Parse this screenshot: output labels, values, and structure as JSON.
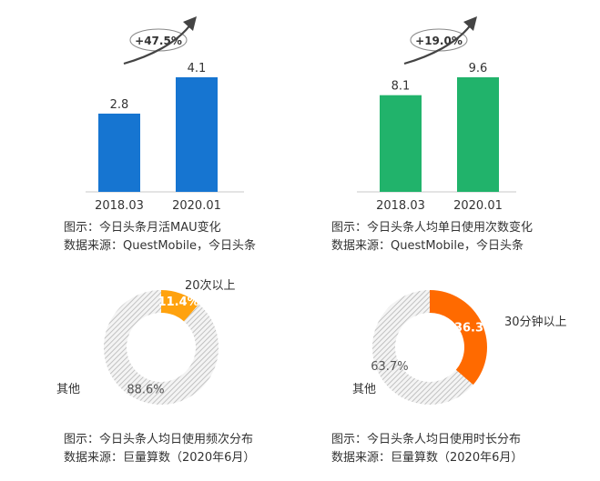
{
  "colors": {
    "blue": "#1675d1",
    "green": "#21b36b",
    "orange_pie1": "#ffa20e",
    "orange_pie2": "#ff6a00",
    "hatch": "#b5b5b5",
    "axis": "#c8c8c8",
    "text": "#333333"
  },
  "chart_data": [
    {
      "type": "bar",
      "categories": [
        "2018.03",
        "2020.01"
      ],
      "values": [
        2.8,
        4.1
      ],
      "value_labels": [
        "2.8",
        "4.1"
      ],
      "growth_badge": "+47.5%",
      "caption": "图示：今日头条月活MAU变化",
      "source": "数据来源：QuestMobile，今日头条",
      "color": "#1675d1",
      "ylim": [
        0,
        4.1
      ]
    },
    {
      "type": "bar",
      "categories": [
        "2018.03",
        "2020.01"
      ],
      "values": [
        8.1,
        9.6
      ],
      "value_labels": [
        "8.1",
        "9.6"
      ],
      "growth_badge": "+19.0%",
      "caption": "图示：今日头条人均单日使用次数变化",
      "source": "数据来源：QuestMobile，今日头条",
      "color": "#21b36b",
      "ylim": [
        0,
        9.6
      ]
    },
    {
      "type": "pie",
      "donut": true,
      "slices": [
        {
          "label": "20次以上",
          "value": 11.4,
          "pct_label": "11.4%"
        },
        {
          "label": "其他",
          "value": 88.6,
          "pct_label": "88.6%"
        }
      ],
      "caption": "图示：今日头条人均日使用频次分布",
      "source": "数据来源：巨量算数（2020年6月）"
    },
    {
      "type": "pie",
      "donut": true,
      "slices": [
        {
          "label": "30分钟以上",
          "value": 36.3,
          "pct_label": "36.3%"
        },
        {
          "label": "其他",
          "value": 63.7,
          "pct_label": "63.7%"
        }
      ],
      "caption": "图示：今日头条人均日使用时长分布",
      "source": "数据来源：巨量算数（2020年6月）"
    }
  ]
}
